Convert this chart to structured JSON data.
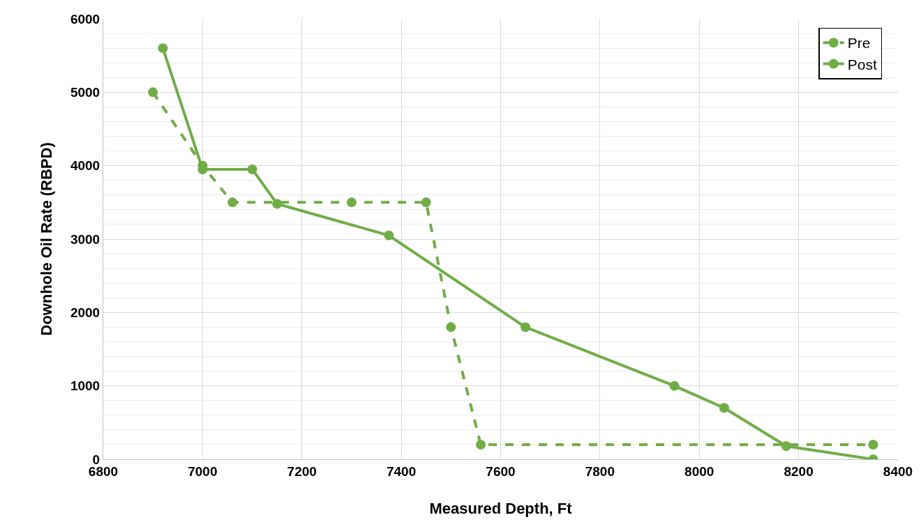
{
  "chart_data": {
    "type": "line",
    "xlabel": "Measured Depth, Ft",
    "ylabel": "Downhole Oil Rate (RBPD)",
    "series": [
      {
        "name": "Pre",
        "color": "#70ad47",
        "line_style": "dashed",
        "x": [
          6900,
          7000,
          7060,
          7300,
          7450,
          7500,
          7560,
          8350
        ],
        "values": [
          5000,
          4000,
          3500,
          3500,
          3500,
          1800,
          200,
          200
        ]
      },
      {
        "name": "Post",
        "color": "#70ad47",
        "line_style": "solid",
        "x": [
          6920,
          7000,
          7100,
          7150,
          7375,
          7650,
          7950,
          8050,
          8175,
          8350
        ],
        "values": [
          5600,
          3950,
          3950,
          3480,
          3050,
          1800,
          1000,
          700,
          180,
          0
        ]
      }
    ],
    "xlim": [
      6800,
      8400
    ],
    "xticks": [
      6800,
      7000,
      7200,
      7400,
      7600,
      7800,
      8000,
      8200,
      8400
    ],
    "ylim": [
      0,
      6000
    ],
    "yticks": [
      0,
      1000,
      2000,
      3000,
      4000,
      5000,
      6000
    ],
    "grid": true,
    "legend": "top right",
    "marker": "circle"
  }
}
